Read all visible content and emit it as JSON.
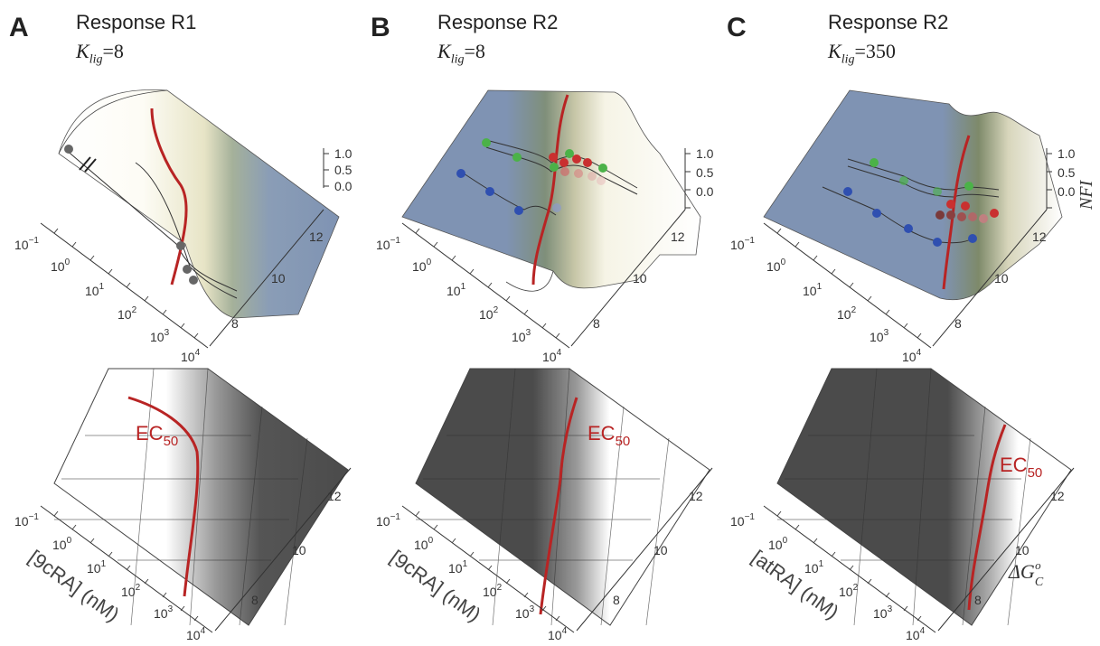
{
  "panels": [
    {
      "id": "A",
      "letter": "A",
      "title": "Response R1",
      "k_sym": "K",
      "k_sub": "lig",
      "k_val": "=8",
      "x_axis_label": "[9cRA] (nM)",
      "ec_label": "EC",
      "ec_sub": "50"
    },
    {
      "id": "B",
      "letter": "B",
      "title": "Response R2",
      "k_sym": "K",
      "k_sub": "lig",
      "k_val": "=8",
      "x_axis_label": "[9cRA] (nM)",
      "ec_label": "EC",
      "ec_sub": "50"
    },
    {
      "id": "C",
      "letter": "C",
      "title": "Response R2",
      "k_sym": "K",
      "k_sub": "lig",
      "k_val": "=350",
      "x_axis_label": "[atRA] (nM)",
      "ec_label": "EC",
      "ec_sub": "50"
    }
  ],
  "conc_ticks": [
    {
      "base": "10",
      "exp": "−1"
    },
    {
      "base": "10",
      "exp": "0"
    },
    {
      "base": "10",
      "exp": "1"
    },
    {
      "base": "10",
      "exp": "2"
    },
    {
      "base": "10",
      "exp": "3"
    },
    {
      "base": "10",
      "exp": "4"
    }
  ],
  "dg_ticks": [
    "12",
    "10",
    "8"
  ],
  "z_ticks": [
    "1.0",
    "0.5",
    "0.0"
  ],
  "z_axis_label": "NFI",
  "dg_axis_label": {
    "sym": "ΔG",
    "sub": "C",
    "sup": "o"
  },
  "colors": {
    "red_curve": "#b82424",
    "surface_blue": "#7f93b3",
    "surface_white": "#f4f1e4",
    "dark_gray": "#4b4b4b",
    "green_point": "#4bb248",
    "red_point": "#c93030",
    "blue_point": "#2f4fb0",
    "gray_point": "#666666"
  }
}
